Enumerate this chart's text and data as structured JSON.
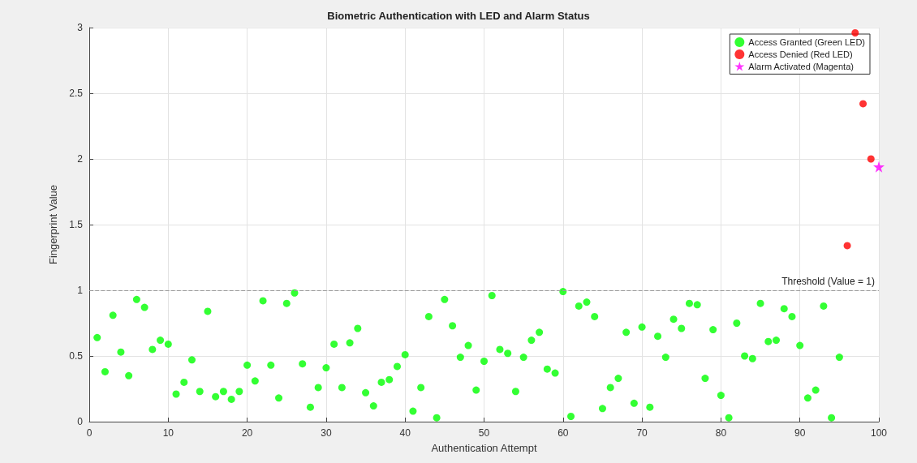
{
  "chart_data": {
    "type": "scatter",
    "title": "Biometric Authentication with LED and Alarm Status",
    "xlabel": "Authentication Attempt",
    "ylabel": "Fingerprint Value",
    "xlim": [
      0,
      100
    ],
    "xticks": [
      0,
      10,
      20,
      30,
      40,
      50,
      60,
      70,
      80,
      90,
      100
    ],
    "ylim": [
      0,
      3
    ],
    "yticks": [
      0,
      0.5,
      1,
      1.5,
      2,
      2.5,
      3
    ],
    "grid": true,
    "legend": "top right",
    "series": [
      {
        "name": "Access Granted (Green LED)",
        "color": "#00ff00",
        "marker": "circle",
        "x": [
          1,
          2,
          3,
          4,
          5,
          6,
          7,
          8,
          9,
          10,
          11,
          12,
          13,
          14,
          15,
          16,
          17,
          18,
          19,
          20,
          21,
          22,
          23,
          24,
          25,
          26,
          27,
          28,
          29,
          30,
          31,
          32,
          33,
          34,
          35,
          36,
          37,
          38,
          39,
          40,
          41,
          42,
          43,
          44,
          45,
          46,
          47,
          48,
          49,
          50,
          51,
          52,
          53,
          54,
          55,
          56,
          57,
          58,
          59,
          60,
          61,
          62,
          63,
          64,
          65,
          66,
          67,
          68,
          69,
          70,
          71,
          72,
          73,
          74,
          75,
          76,
          77,
          78,
          79,
          80,
          81,
          82,
          83,
          84,
          85,
          86,
          87,
          88,
          89,
          90,
          91,
          92,
          93,
          94,
          95
        ],
        "values": [
          0.64,
          0.38,
          0.81,
          0.53,
          0.35,
          0.93,
          0.87,
          0.55,
          0.62,
          0.59,
          0.21,
          0.3,
          0.47,
          0.23,
          0.84,
          0.19,
          0.23,
          0.17,
          0.23,
          0.43,
          0.31,
          0.92,
          0.43,
          0.18,
          0.9,
          0.98,
          0.44,
          0.11,
          0.26,
          0.41,
          0.59,
          0.26,
          0.6,
          0.71,
          0.22,
          0.12,
          0.3,
          0.32,
          0.42,
          0.51,
          0.08,
          0.26,
          0.8,
          0.03,
          0.93,
          0.73,
          0.49,
          0.58,
          0.24,
          0.46,
          0.96,
          0.55,
          0.52,
          0.23,
          0.49,
          0.62,
          0.68,
          0.4,
          0.37,
          0.99,
          0.04,
          0.88,
          0.91,
          0.8,
          0.1,
          0.26,
          0.33,
          0.68,
          0.14,
          0.72,
          0.11,
          0.65,
          0.49,
          0.78,
          0.71,
          0.9,
          0.89,
          0.33,
          0.7,
          0.2,
          0.03,
          0.75,
          0.5,
          0.48,
          0.9,
          0.61,
          0.62,
          0.86,
          0.8,
          0.58,
          0.18,
          0.24,
          0.88,
          0.03,
          0.49
        ]
      },
      {
        "name": "Access Denied (Red LED)",
        "color": "#ff0000",
        "marker": "circle",
        "x": [
          96,
          97,
          98,
          99
        ],
        "values": [
          1.34,
          2.96,
          2.42,
          2.0
        ]
      },
      {
        "name": "Alarm Activated (Magenta)",
        "color": "#ff00ff",
        "marker": "star",
        "x": [
          100
        ],
        "values": [
          1.94
        ]
      }
    ],
    "ref_lines": [
      {
        "axis": "y",
        "value": 1,
        "label": "Threshold (Value = 1)",
        "color": "#999999",
        "line_style": "dashed"
      }
    ]
  }
}
